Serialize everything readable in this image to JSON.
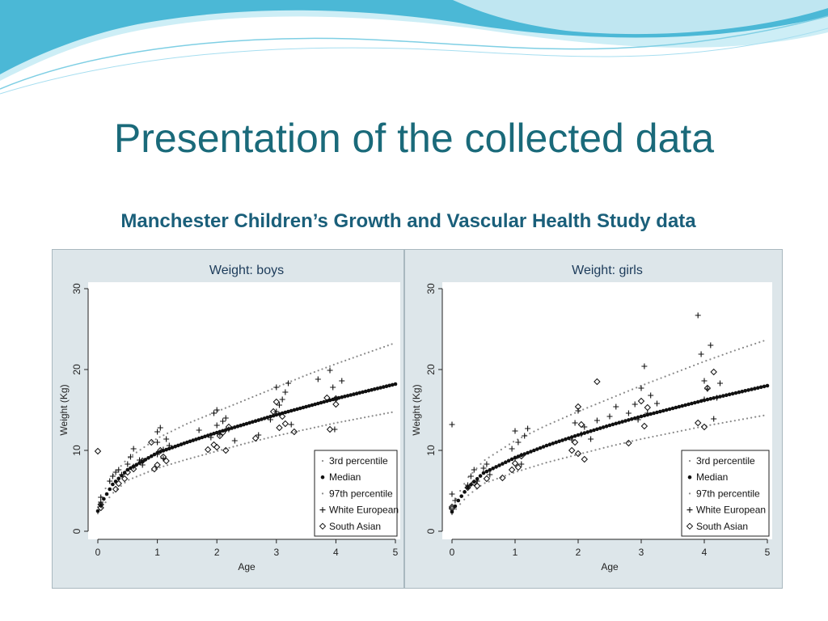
{
  "slide": {
    "title": "Presentation of the collected data",
    "subtitle": "Manchester Children’s Growth and Vascular Health Study data"
  },
  "colors": {
    "title": "#1a6a7a",
    "wave_dark": "#2a9fc0",
    "wave_light": "#bfe6f1",
    "panel_bg": "#dde6ea"
  },
  "chart_data": [
    {
      "type": "scatter",
      "title": "Weight: boys",
      "xlabel": "Age",
      "ylabel": "Weight (Kg)",
      "xlim": [
        0,
        5
      ],
      "ylim": [
        0,
        30
      ],
      "xticks": [
        "0",
        "1",
        "2",
        "3",
        "4",
        "5"
      ],
      "yticks": [
        "0",
        "10",
        "20",
        "30"
      ],
      "grid": false,
      "legend_position": "bottom-right",
      "curves": [
        {
          "name": "3rd percentile",
          "marker": "dot",
          "x": [
            0,
            0.1,
            0.25,
            0.5,
            1,
            1.5,
            2,
            2.5,
            3,
            3.5,
            4,
            4.5,
            5
          ],
          "y": [
            2.2,
            3.3,
            4.7,
            6.3,
            7.8,
            8.9,
            9.9,
            10.9,
            11.8,
            12.6,
            13.4,
            14.1,
            14.8
          ]
        },
        {
          "name": "Median",
          "marker": "filled-dot",
          "x": [
            0,
            0.1,
            0.25,
            0.5,
            1,
            1.5,
            2,
            2.5,
            3,
            3.5,
            4,
            4.5,
            5
          ],
          "y": [
            2.5,
            4.0,
            5.8,
            7.6,
            9.7,
            11.0,
            12.2,
            13.3,
            14.4,
            15.4,
            16.4,
            17.3,
            18.2
          ]
        },
        {
          "name": "97th percentile",
          "marker": "dot",
          "x": [
            0,
            0.1,
            0.25,
            0.5,
            1,
            1.5,
            2,
            2.5,
            3,
            3.5,
            4,
            4.5,
            5
          ],
          "y": [
            3.0,
            4.9,
            6.9,
            9.0,
            11.5,
            13.3,
            14.8,
            16.3,
            17.8,
            19.3,
            20.7,
            22.0,
            23.3
          ]
        }
      ],
      "series": [
        {
          "name": "White European",
          "marker": "plus",
          "points": [
            [
              0.05,
              3.6
            ],
            [
              0.05,
              4.2
            ],
            [
              0.2,
              6.2
            ],
            [
              0.25,
              6.8
            ],
            [
              0.3,
              7.3
            ],
            [
              0.35,
              7.6
            ],
            [
              0.4,
              7.0
            ],
            [
              0.5,
              8.3
            ],
            [
              0.55,
              9.2
            ],
            [
              0.6,
              10.2
            ],
            [
              0.6,
              8.0
            ],
            [
              0.7,
              8.8
            ],
            [
              0.75,
              8.2
            ],
            [
              1.0,
              9.5
            ],
            [
              1.0,
              11.0
            ],
            [
              1.0,
              12.3
            ],
            [
              1.05,
              12.8
            ],
            [
              1.1,
              10.1
            ],
            [
              1.1,
              9.0
            ],
            [
              1.15,
              11.4
            ],
            [
              1.2,
              10.6
            ],
            [
              1.7,
              12.5
            ],
            [
              1.9,
              11.6
            ],
            [
              1.95,
              14.6
            ],
            [
              2.0,
              13.1
            ],
            [
              2.0,
              15.0
            ],
            [
              2.05,
              12.0
            ],
            [
              2.1,
              13.6
            ],
            [
              2.15,
              14.0
            ],
            [
              2.2,
              12.6
            ],
            [
              2.3,
              11.2
            ],
            [
              2.7,
              11.9
            ],
            [
              2.9,
              13.8
            ],
            [
              3.0,
              17.8
            ],
            [
              3.0,
              14.8
            ],
            [
              3.05,
              15.6
            ],
            [
              3.1,
              16.3
            ],
            [
              3.15,
              17.2
            ],
            [
              3.2,
              18.3
            ],
            [
              3.25,
              13.2
            ],
            [
              3.7,
              18.8
            ],
            [
              3.9,
              19.9
            ],
            [
              3.95,
              17.8
            ],
            [
              3.98,
              12.6
            ],
            [
              4.1,
              18.6
            ]
          ]
        },
        {
          "name": "South Asian",
          "marker": "diamond",
          "points": [
            [
              0.0,
              9.9
            ],
            [
              0.05,
              2.9
            ],
            [
              0.05,
              3.3
            ],
            [
              0.3,
              5.2
            ],
            [
              0.35,
              5.9
            ],
            [
              0.45,
              6.5
            ],
            [
              0.5,
              7.3
            ],
            [
              0.6,
              7.7
            ],
            [
              0.75,
              8.7
            ],
            [
              0.9,
              11.0
            ],
            [
              0.95,
              7.7
            ],
            [
              1.0,
              8.2
            ],
            [
              1.05,
              10.0
            ],
            [
              1.1,
              9.2
            ],
            [
              1.15,
              8.7
            ],
            [
              1.85,
              10.1
            ],
            [
              1.95,
              10.7
            ],
            [
              2.0,
              10.4
            ],
            [
              2.05,
              11.8
            ],
            [
              2.1,
              12.2
            ],
            [
              2.15,
              10.0
            ],
            [
              2.2,
              12.9
            ],
            [
              2.65,
              11.5
            ],
            [
              2.95,
              14.8
            ],
            [
              3.0,
              16.0
            ],
            [
              3.05,
              12.8
            ],
            [
              3.1,
              14.2
            ],
            [
              3.15,
              13.3
            ],
            [
              3.3,
              12.3
            ],
            [
              3.85,
              16.5
            ],
            [
              3.9,
              12.6
            ],
            [
              4.0,
              15.7
            ],
            [
              4.0,
              16.4
            ]
          ]
        }
      ]
    },
    {
      "type": "scatter",
      "title": "Weight: girls",
      "xlabel": "Age",
      "ylabel": "Weight (Kg)",
      "xlim": [
        0,
        5
      ],
      "ylim": [
        0,
        30
      ],
      "xticks": [
        "0",
        "1",
        "2",
        "3",
        "4",
        "5"
      ],
      "yticks": [
        "0",
        "10",
        "20",
        "30"
      ],
      "grid": false,
      "legend_position": "bottom-right",
      "curves": [
        {
          "name": "3rd percentile",
          "marker": "dot",
          "x": [
            0,
            0.1,
            0.25,
            0.5,
            1,
            1.5,
            2,
            2.5,
            3,
            3.5,
            4,
            4.5,
            5
          ],
          "y": [
            2.1,
            3.1,
            4.4,
            5.9,
            7.3,
            8.5,
            9.5,
            10.5,
            11.4,
            12.2,
            13.0,
            13.7,
            14.4
          ]
        },
        {
          "name": "Median",
          "marker": "filled-dot",
          "x": [
            0,
            0.1,
            0.25,
            0.5,
            1,
            1.5,
            2,
            2.5,
            3,
            3.5,
            4,
            4.5,
            5
          ],
          "y": [
            2.4,
            3.8,
            5.4,
            7.2,
            9.1,
            10.6,
            11.9,
            13.1,
            14.2,
            15.2,
            16.2,
            17.1,
            18.0
          ]
        },
        {
          "name": "97th percentile",
          "marker": "dot",
          "x": [
            0,
            0.1,
            0.25,
            0.5,
            1,
            1.5,
            2,
            2.5,
            3,
            3.5,
            4,
            4.5,
            5
          ],
          "y": [
            2.9,
            4.6,
            6.6,
            8.7,
            11.2,
            13.1,
            14.8,
            16.4,
            18.0,
            19.5,
            21.0,
            22.4,
            23.7
          ]
        }
      ],
      "series": [
        {
          "name": "White European",
          "marker": "plus",
          "points": [
            [
              0.0,
              13.2
            ],
            [
              0.0,
              4.6
            ],
            [
              0.05,
              3.8
            ],
            [
              0.25,
              5.7
            ],
            [
              0.3,
              6.8
            ],
            [
              0.35,
              7.6
            ],
            [
              0.4,
              6.2
            ],
            [
              0.5,
              7.8
            ],
            [
              0.55,
              8.3
            ],
            [
              0.6,
              7.0
            ],
            [
              0.95,
              10.2
            ],
            [
              1.0,
              12.4
            ],
            [
              1.0,
              9.0
            ],
            [
              1.05,
              11.0
            ],
            [
              1.1,
              8.3
            ],
            [
              1.15,
              11.8
            ],
            [
              1.2,
              12.7
            ],
            [
              1.9,
              11.3
            ],
            [
              1.95,
              13.4
            ],
            [
              2.0,
              14.9
            ],
            [
              2.05,
              12.0
            ],
            [
              2.1,
              12.9
            ],
            [
              2.2,
              11.4
            ],
            [
              2.3,
              13.7
            ],
            [
              2.5,
              14.2
            ],
            [
              2.6,
              15.4
            ],
            [
              2.8,
              14.6
            ],
            [
              2.9,
              15.7
            ],
            [
              2.95,
              13.8
            ],
            [
              3.0,
              17.7
            ],
            [
              3.05,
              20.4
            ],
            [
              3.1,
              14.6
            ],
            [
              3.15,
              16.8
            ],
            [
              3.25,
              15.8
            ],
            [
              3.9,
              26.7
            ],
            [
              3.95,
              21.9
            ],
            [
              4.0,
              18.6
            ],
            [
              4.0,
              16.3
            ],
            [
              4.05,
              17.6
            ],
            [
              4.1,
              23.0
            ],
            [
              4.15,
              13.9
            ],
            [
              4.2,
              16.5
            ],
            [
              4.25,
              18.3
            ]
          ]
        },
        {
          "name": "South Asian",
          "marker": "diamond",
          "points": [
            [
              0.0,
              2.8
            ],
            [
              0.0,
              3.0
            ],
            [
              0.25,
              5.4
            ],
            [
              0.35,
              6.0
            ],
            [
              0.4,
              5.6
            ],
            [
              0.55,
              6.5
            ],
            [
              0.8,
              6.6
            ],
            [
              0.95,
              7.6
            ],
            [
              1.0,
              8.4
            ],
            [
              1.05,
              7.9
            ],
            [
              1.1,
              9.3
            ],
            [
              1.9,
              10.0
            ],
            [
              1.95,
              11.0
            ],
            [
              2.0,
              15.4
            ],
            [
              2.0,
              9.6
            ],
            [
              2.05,
              13.2
            ],
            [
              2.1,
              8.9
            ],
            [
              2.3,
              18.5
            ],
            [
              2.8,
              10.9
            ],
            [
              3.0,
              16.1
            ],
            [
              3.05,
              13.0
            ],
            [
              3.1,
              15.3
            ],
            [
              3.9,
              13.4
            ],
            [
              4.0,
              12.9
            ],
            [
              4.05,
              17.7
            ],
            [
              4.15,
              19.7
            ]
          ]
        }
      ]
    }
  ],
  "legend_items": [
    {
      "name": "3rd percentile",
      "marker": "dot"
    },
    {
      "name": "Median",
      "marker": "filled-dot"
    },
    {
      "name": "97th percentile",
      "marker": "dot"
    },
    {
      "name": "White European",
      "marker": "plus"
    },
    {
      "name": "South Asian",
      "marker": "diamond"
    }
  ]
}
